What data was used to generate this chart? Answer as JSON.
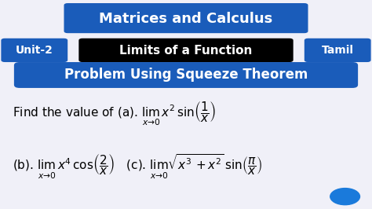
{
  "bg_color": "#f0f0f8",
  "title_bg": "#1a5cba",
  "title_text": "Matrices and Calculus",
  "title_color": "#ffffff",
  "unit_bg": "#1a5cba",
  "unit_text": "Unit-2",
  "unit_color": "#ffffff",
  "subtitle_bg": "#000000",
  "subtitle_text": "Limits of a Function",
  "subtitle_color": "#ffffff",
  "tamil_bg": "#1a5cba",
  "tamil_text": "Tamil",
  "tamil_color": "#ffffff",
  "problem_bg": "#1a5cba",
  "problem_text": "Problem Using Squeeze Theorem",
  "problem_color": "#ffffff",
  "line1": "Find the value of (a). $\\lim_{x\\to 0}\\, x^2\\sin\\!\\left(\\dfrac{1}{x}\\right)$",
  "line2": "(b). $\\lim_{x\\to 0}\\, x^4\\cos\\!\\left(\\dfrac{2}{x}\\right)$   (c). $\\lim_{x\\to 0}\\sqrt{x^3+x^2}\\,\\sin\\!\\left(\\dfrac{\\pi}{x}\\right)$",
  "text_color": "#000000",
  "dot_color": "#1a7adb",
  "figsize": [
    4.74,
    2.66
  ],
  "dpi": 100
}
